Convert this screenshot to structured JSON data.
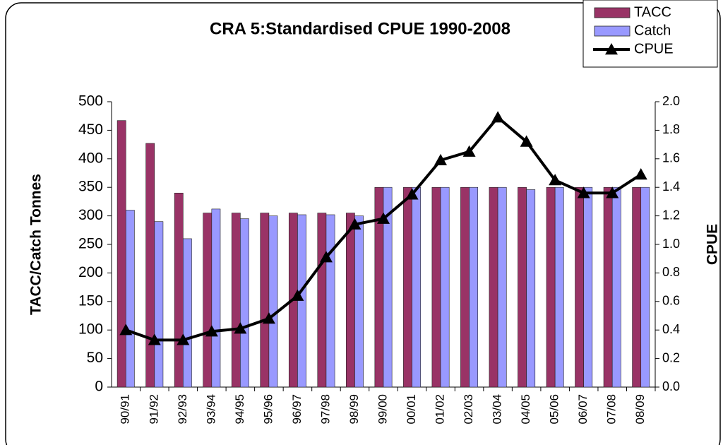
{
  "chart_data": {
    "type": "bar",
    "title": "CRA 5:Standardised CPUE 1990-2008",
    "ylabel": "TACC/Catch Tonnes",
    "y2label": "CPUE",
    "categories": [
      "90/91",
      "91/92",
      "92/93",
      "93/94",
      "94/95",
      "95/96",
      "96/97",
      "97/98",
      "98/99",
      "99/00",
      "00/01",
      "01/02",
      "02/03",
      "03/04",
      "04/05",
      "05/06",
      "06/07",
      "07/08",
      "08/09"
    ],
    "series": [
      {
        "name": "TACC",
        "color": "#993366",
        "values": [
          467,
          427,
          340,
          305,
          305,
          305,
          305,
          305,
          305,
          350,
          350,
          350,
          350,
          350,
          350,
          350,
          350,
          350,
          350
        ]
      },
      {
        "name": "Catch",
        "color": "#9999ff",
        "values": [
          310,
          290,
          260,
          312,
          295,
          300,
          302,
          302,
          300,
          350,
          350,
          350,
          350,
          350,
          346,
          350,
          350,
          350,
          350
        ]
      },
      {
        "name": "CPUE",
        "color": "#000000",
        "type": "line",
        "axis": "y2",
        "values": [
          0.4,
          0.33,
          0.33,
          0.39,
          0.41,
          0.48,
          0.64,
          0.91,
          1.14,
          1.18,
          1.35,
          1.59,
          1.65,
          1.89,
          1.72,
          1.45,
          1.36,
          1.36,
          1.49
        ]
      }
    ],
    "ylim": [
      0,
      500
    ],
    "yticks": [
      0,
      50,
      100,
      150,
      200,
      250,
      300,
      350,
      400,
      450,
      500
    ],
    "y2lim": [
      0,
      2
    ],
    "y2ticks": [
      {
        "value": 0,
        "label": "0.0"
      },
      0.2,
      0.4,
      0.6,
      0.8,
      {
        "value": 1,
        "label": "1.0"
      },
      1.2,
      1.4,
      1.6,
      1.8,
      {
        "value": 2,
        "label": "2.0"
      }
    ],
    "legend": "top-right",
    "grid": false
  }
}
